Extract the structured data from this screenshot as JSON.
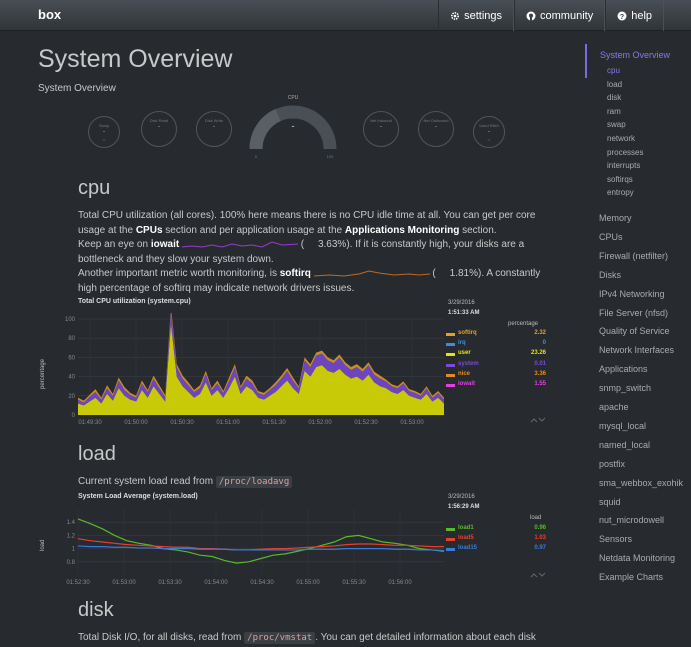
{
  "navbar": {
    "brand": "box",
    "links": [
      {
        "label": "settings",
        "icon": "gear-icon"
      },
      {
        "label": "community",
        "icon": "github-icon"
      },
      {
        "label": "help",
        "icon": "question-icon"
      }
    ]
  },
  "page": {
    "title": "System Overview",
    "subtitle": "System Overview"
  },
  "gauges": {
    "cpu_label": "CPU",
    "cpu_value": "-",
    "small": [
      {
        "label": "Disk Read",
        "value": "-"
      },
      {
        "label": "Disk Write",
        "value": "-"
      },
      {
        "label": "Net Inbound",
        "value": "-"
      },
      {
        "label": "Net Outbound",
        "value": "-"
      }
    ]
  },
  "cpu": {
    "heading": "cpu",
    "p1_before": "Total CPU utilization (all cores). 100% here means there is no CPU idle time at all. You can get per core usage at the ",
    "p1_cpus": "CPUs",
    "p1_mid": " section and per application usage at the ",
    "p1_apps": "Applications Monitoring",
    "p1_after": " section.",
    "p2_before": "Keep an eye on ",
    "p2_iowait": "iowait",
    "p2_iowait_val": "3.63%",
    "p2_after": "). If it is constantly high, your disks are a bottleneck and they slow your system down.",
    "p3_before": "Another important metric worth monitoring, is ",
    "p3_softirq": "softirq",
    "p3_softirq_val": "1.81%",
    "p3_after": "). A constantly high percentage of softirq may indicate network drivers issues.",
    "chart_title": "Total CPU utilization (system.cpu)",
    "ylabel": "percentage",
    "date": "3/29/2016",
    "time": "1:51:33 AM",
    "unit": "percentage",
    "legend": [
      {
        "name": "softirq",
        "value": "2.32",
        "color": "#e5a020"
      },
      {
        "name": "irq",
        "value": "0",
        "color": "#3a8fd8"
      },
      {
        "name": "user",
        "value": "23.26",
        "color": "#e5e500"
      },
      {
        "name": "system",
        "value": "0.01",
        "color": "#7a4ad8"
      },
      {
        "name": "nice",
        "value": "3.36",
        "color": "#e58a20"
      },
      {
        "name": "iowait",
        "value": "1.55",
        "color": "#e040e0"
      }
    ]
  },
  "load": {
    "heading": "load",
    "p_before": "Current system load read from ",
    "p_code": "/proc/loadavg",
    "chart_title": "System Load Average (system.load)",
    "ylabel": "load",
    "date": "3/29/2016",
    "time": "1:56:29 AM",
    "unit": "load",
    "legend": [
      {
        "name": "load1",
        "value": "0.96",
        "color": "#5ab82a"
      },
      {
        "name": "load5",
        "value": "1.03",
        "color": "#e5402a"
      },
      {
        "name": "load15",
        "value": "0.97",
        "color": "#3a7ad8"
      }
    ]
  },
  "disk": {
    "heading": "disk",
    "p_before": "Total Disk I/O, for all disks, read from ",
    "p_code": "/proc/vmstat",
    "p_after": ". You can get detailed information about each disk"
  },
  "chart_data": [
    {
      "type": "area",
      "title": "Total CPU utilization (system.cpu)",
      "ylabel": "percentage",
      "ylim": [
        0,
        100
      ],
      "yticks": [
        "100",
        "80",
        "60",
        "40",
        "20",
        "0"
      ],
      "xticks": [
        "01:49:30",
        "01:50:00",
        "01:50:30",
        "01:51:00",
        "01:51:30",
        "01:52:00",
        "01:52:30",
        "01:53:00"
      ],
      "series": [
        {
          "name": "user",
          "values": [
            12,
            10,
            14,
            18,
            12,
            22,
            15,
            28,
            20,
            16,
            14,
            26,
            18,
            30,
            22,
            14,
            95,
            40,
            30,
            24,
            18,
            22,
            34,
            20,
            26,
            18,
            28,
            40,
            22,
            30,
            26,
            18,
            16,
            20,
            24,
            30,
            36,
            28,
            22,
            46,
            40,
            50,
            52,
            46,
            44,
            48,
            42,
            38,
            40,
            36,
            42,
            34,
            30,
            28,
            24,
            22,
            26,
            20,
            18,
            16,
            22,
            14,
            18,
            12
          ]
        },
        {
          "name": "system",
          "values": [
            4,
            3,
            5,
            6,
            4,
            6,
            5,
            8,
            6,
            5,
            4,
            7,
            6,
            8,
            6,
            5,
            14,
            10,
            8,
            7,
            6,
            6,
            9,
            6,
            7,
            5,
            8,
            10,
            6,
            8,
            7,
            5,
            5,
            6,
            7,
            8,
            10,
            8,
            6,
            11,
            10,
            12,
            12,
            11,
            10,
            12,
            10,
            9,
            10,
            9,
            10,
            8,
            8,
            7,
            6,
            6,
            7,
            5,
            5,
            4,
            6,
            4,
            5,
            4
          ]
        },
        {
          "name": "softirq",
          "values": [
            2,
            2,
            2,
            3,
            2,
            3,
            2,
            3,
            3,
            2,
            2,
            3,
            2,
            3,
            3,
            2,
            4,
            3,
            3,
            3,
            2,
            3,
            3,
            2,
            3,
            2,
            3,
            3,
            2,
            3,
            3,
            2,
            2,
            2,
            3,
            3,
            3,
            3,
            2,
            3,
            3,
            3,
            3,
            3,
            3,
            3,
            3,
            3,
            3,
            3,
            3,
            3,
            3,
            2,
            2,
            2,
            2,
            2,
            2,
            2,
            2,
            2,
            2,
            2
          ]
        }
      ]
    },
    {
      "type": "line",
      "title": "System Load Average (system.load)",
      "ylabel": "load",
      "ylim": [
        0.6,
        1.6
      ],
      "yticks": [
        "1.4",
        "1.2",
        "1",
        "0.8"
      ],
      "xticks": [
        "01:52:30",
        "01:53:00",
        "01:53:30",
        "01:54:00",
        "01:54:30",
        "01:55:00",
        "01:55:30",
        "01:56:00"
      ],
      "series": [
        {
          "name": "load1",
          "values": [
            1.45,
            1.38,
            1.3,
            1.2,
            1.12,
            1.08,
            1.05,
            1.0,
            0.98,
            0.95,
            0.9,
            0.88,
            0.82,
            0.78,
            0.8,
            0.85,
            0.9,
            0.92,
            0.96,
            1.0,
            1.05,
            1.1,
            1.18,
            1.2,
            1.15,
            1.1,
            1.08,
            1.05,
            1.0,
            0.98,
            0.96
          ]
        },
        {
          "name": "load5",
          "values": [
            1.15,
            1.12,
            1.1,
            1.08,
            1.06,
            1.05,
            1.04,
            1.03,
            1.02,
            1.02,
            1.0,
            1.0,
            0.99,
            0.98,
            0.98,
            0.99,
            1.0,
            1.0,
            1.01,
            1.02,
            1.03,
            1.04,
            1.06,
            1.07,
            1.07,
            1.06,
            1.05,
            1.05,
            1.04,
            1.03,
            1.03
          ]
        },
        {
          "name": "load15",
          "values": [
            1.04,
            1.03,
            1.03,
            1.02,
            1.02,
            1.01,
            1.01,
            1.0,
            1.0,
            1.0,
            0.99,
            0.99,
            0.99,
            0.98,
            0.98,
            0.98,
            0.98,
            0.98,
            0.98,
            0.99,
            0.99,
            0.99,
            1.0,
            1.0,
            1.0,
            1.0,
            0.99,
            0.99,
            0.98,
            0.98,
            0.97
          ]
        }
      ]
    }
  ],
  "sidebar": {
    "heading": "System Overview",
    "subitems": [
      "cpu",
      "load",
      "disk",
      "ram",
      "swap",
      "network",
      "processes",
      "interrupts",
      "softirqs",
      "entropy"
    ],
    "items": [
      "Memory",
      "CPUs",
      "Firewall (netfilter)",
      "Disks",
      "IPv4 Networking",
      "File Server (nfsd)",
      "Quality of Service",
      "Network Interfaces",
      "Applications",
      "snmp_switch",
      "apache",
      "mysql_local",
      "named_local",
      "postfix",
      "sma_webbox_exohik",
      "squid",
      "nut_microdowell",
      "Sensors",
      "Netdata Monitoring",
      "Example Charts"
    ]
  }
}
